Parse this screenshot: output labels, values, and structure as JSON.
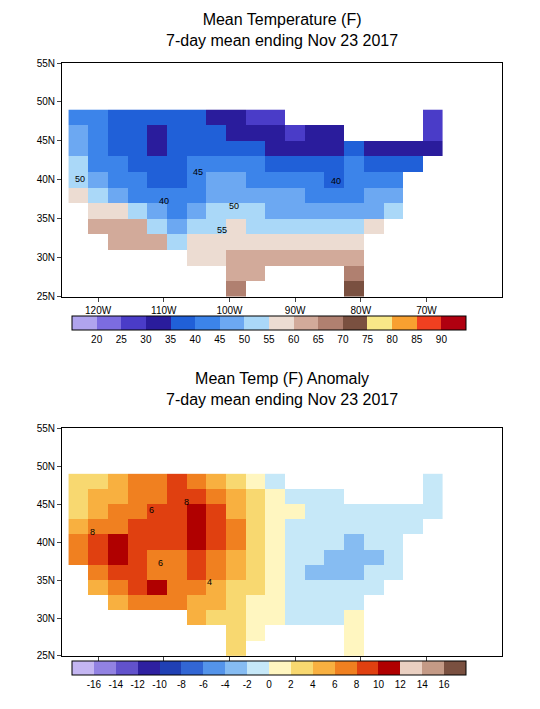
{
  "chart_data": [
    {
      "type": "heatmap",
      "title": "Mean Temperature (F)",
      "subtitle": "7-day mean ending Nov 23 2017",
      "grid": false,
      "xlim": [
        -125.5,
        -58.5
      ],
      "ylim": [
        25,
        55
      ],
      "xticks": [
        {
          "value": -120,
          "label": "120W"
        },
        {
          "value": -110,
          "label": "110W"
        },
        {
          "value": -100,
          "label": "100W"
        },
        {
          "value": -90,
          "label": "90W"
        },
        {
          "value": -80,
          "label": "80W"
        },
        {
          "value": -70,
          "label": "70W"
        }
      ],
      "yticks": [
        {
          "value": 25,
          "label": "25N"
        },
        {
          "value": 30,
          "label": "30N"
        },
        {
          "value": 35,
          "label": "35N"
        },
        {
          "value": 40,
          "label": "40N"
        },
        {
          "value": 45,
          "label": "45N"
        },
        {
          "value": 50,
          "label": "50N"
        },
        {
          "value": 55,
          "label": "55N"
        }
      ],
      "x": [
        -123,
        -120,
        -117,
        -114,
        -111,
        -108,
        -105,
        -102,
        -99,
        -96,
        -93,
        -90,
        -87,
        -84,
        -81,
        -78,
        -75,
        -72,
        -69
      ],
      "y": [
        26,
        28,
        30,
        32,
        34,
        36,
        38,
        40,
        42,
        44,
        46,
        48
      ],
      "z": [
        [
          null,
          null,
          null,
          null,
          null,
          null,
          null,
          null,
          66,
          null,
          null,
          null,
          null,
          null,
          72,
          null,
          null,
          null,
          null
        ],
        [
          null,
          null,
          null,
          null,
          null,
          null,
          null,
          null,
          63,
          64,
          null,
          null,
          null,
          null,
          68,
          null,
          null,
          null,
          null
        ],
        [
          null,
          null,
          null,
          null,
          null,
          null,
          57,
          58,
          61,
          62,
          62,
          61,
          61,
          61,
          62,
          null,
          null,
          null,
          null
        ],
        [
          null,
          null,
          62,
          64,
          61,
          52,
          56,
          57,
          58,
          58,
          57,
          56,
          56,
          56,
          58,
          null,
          null,
          null,
          null
        ],
        [
          null,
          62,
          62,
          61,
          52,
          47,
          51,
          54,
          56,
          54,
          53,
          52,
          52,
          52,
          54,
          56,
          null,
          null,
          null
        ],
        [
          null,
          56,
          57,
          52,
          46,
          43,
          46,
          51,
          52,
          51,
          49,
          48,
          47,
          46,
          47,
          49,
          52,
          null,
          null
        ],
        [
          56,
          52,
          48,
          44,
          42,
          41,
          42,
          47,
          49,
          48,
          46,
          46,
          44,
          43,
          44,
          46,
          48,
          null,
          null
        ],
        [
          52,
          47,
          42,
          41,
          38,
          38,
          41,
          46,
          47,
          44,
          42,
          41,
          41,
          39,
          41,
          42,
          44,
          null,
          null
        ],
        [
          51,
          43,
          41,
          38,
          37,
          39,
          42,
          43,
          42,
          41,
          38,
          37,
          37,
          38,
          41,
          38,
          37,
          38,
          null
        ],
        [
          48,
          42,
          38,
          36,
          31,
          37,
          38,
          39,
          37,
          36,
          33,
          33,
          33,
          34,
          36,
          34,
          32,
          31,
          33
        ],
        [
          46,
          41,
          38,
          36,
          34,
          37,
          37,
          36,
          33,
          32,
          31,
          29,
          31,
          32,
          null,
          null,
          null,
          null,
          29
        ],
        [
          44,
          41,
          38,
          37,
          38,
          37,
          36,
          33,
          31,
          29,
          28,
          null,
          null,
          null,
          null,
          null,
          null,
          null,
          28
        ]
      ],
      "colorbar": {
        "range": [
          15,
          95
        ],
        "ticks": [
          20,
          25,
          30,
          35,
          40,
          45,
          50,
          55,
          60,
          65,
          70,
          75,
          80,
          85,
          90
        ],
        "colors": [
          "#b0a4ee",
          "#7c6ce0",
          "#4a3cc8",
          "#2a1c9c",
          "#2060d8",
          "#3c84ea",
          "#6ca8f2",
          "#aad8f8",
          "#ecdcd2",
          "#d2aa9a",
          "#b08070",
          "#7a5040",
          "#f8e888",
          "#f8a030",
          "#f04020",
          "#b00010"
        ]
      },
      "annotations": [
        {
          "text": "50",
          "x": -122.7,
          "y": 40.1
        },
        {
          "text": "45",
          "x": -104.8,
          "y": 41.0
        },
        {
          "text": "40",
          "x": -110.0,
          "y": 37.3
        },
        {
          "text": "50",
          "x": -99.3,
          "y": 36.7
        },
        {
          "text": "55",
          "x": -101.1,
          "y": 33.6
        },
        {
          "text": "40",
          "x": -83.8,
          "y": 39.8
        }
      ]
    },
    {
      "type": "heatmap",
      "title": "Mean Temp (F) Anomaly",
      "subtitle": "7-day mean ending Nov 23 2017",
      "grid": false,
      "xlim": [
        -125.5,
        -58.5
      ],
      "ylim": [
        25,
        55
      ],
      "xticks": [
        {
          "value": -120,
          "label": "120W"
        },
        {
          "value": -110,
          "label": "110W"
        },
        {
          "value": -100,
          "label": "100W"
        },
        {
          "value": -90,
          "label": "90W"
        },
        {
          "value": -80,
          "label": "80W"
        },
        {
          "value": -70,
          "label": "70W"
        }
      ],
      "yticks": [
        {
          "value": 25,
          "label": "25N"
        },
        {
          "value": 30,
          "label": "30N"
        },
        {
          "value": 35,
          "label": "35N"
        },
        {
          "value": 40,
          "label": "40N"
        },
        {
          "value": 45,
          "label": "45N"
        },
        {
          "value": 50,
          "label": "50N"
        },
        {
          "value": 55,
          "label": "55N"
        }
      ],
      "x": [
        -123,
        -120,
        -117,
        -114,
        -111,
        -108,
        -105,
        -102,
        -99,
        -96,
        -93,
        -90,
        -87,
        -84,
        -81,
        -78,
        -75,
        -72,
        -69
      ],
      "y": [
        26,
        28,
        30,
        32,
        34,
        36,
        38,
        40,
        42,
        44,
        46,
        48
      ],
      "z": [
        [
          null,
          null,
          null,
          null,
          null,
          null,
          null,
          null,
          3,
          null,
          null,
          null,
          null,
          null,
          1,
          null,
          null,
          null,
          null
        ],
        [
          null,
          null,
          null,
          null,
          null,
          null,
          null,
          null,
          3,
          1,
          null,
          null,
          null,
          null,
          1,
          null,
          null,
          null,
          null
        ],
        [
          null,
          null,
          null,
          null,
          null,
          null,
          5,
          3,
          3,
          1,
          1,
          -1,
          -1,
          -1,
          1,
          null,
          null,
          null,
          null
        ],
        [
          null,
          null,
          5,
          7,
          7,
          7,
          5,
          5,
          3,
          1,
          1,
          -1,
          -1,
          -1,
          -1,
          null,
          null,
          null,
          null
        ],
        [
          null,
          5,
          7,
          9,
          11,
          7,
          7,
          5,
          3,
          3,
          1,
          -1,
          -1,
          -1,
          -1,
          -1,
          null,
          null,
          null
        ],
        [
          null,
          7,
          9,
          9,
          7,
          7,
          9,
          7,
          5,
          3,
          1,
          -1,
          -3,
          -3,
          -3,
          -1,
          -1,
          null,
          null
        ],
        [
          7,
          9,
          11,
          9,
          7,
          7,
          9,
          7,
          5,
          3,
          1,
          -1,
          -1,
          -3,
          -3,
          -3,
          -1,
          null,
          null
        ],
        [
          7,
          9,
          11,
          9,
          9,
          9,
          11,
          9,
          7,
          3,
          1,
          -1,
          -1,
          -1,
          -3,
          -1,
          -1,
          null,
          null
        ],
        [
          5,
          7,
          7,
          9,
          9,
          9,
          11,
          9,
          7,
          3,
          1,
          -1,
          -1,
          -1,
          -1,
          -1,
          -1,
          -1,
          null
        ],
        [
          3,
          5,
          7,
          7,
          9,
          9,
          11,
          9,
          5,
          3,
          1,
          1,
          -1,
          -1,
          -1,
          -1,
          -1,
          -1,
          -1
        ],
        [
          3,
          5,
          5,
          7,
          7,
          9,
          9,
          7,
          5,
          3,
          1,
          -1,
          -1,
          -1,
          null,
          null,
          null,
          null,
          -1
        ],
        [
          3,
          3,
          5,
          7,
          7,
          9,
          7,
          5,
          3,
          1,
          -1,
          null,
          null,
          null,
          null,
          null,
          null,
          null,
          -1
        ]
      ],
      "colorbar": {
        "range": [
          -18,
          18
        ],
        "ticks": [
          -16,
          -14,
          -12,
          -10,
          -8,
          -6,
          -4,
          -2,
          0,
          2,
          4,
          6,
          8,
          10,
          12,
          14,
          16
        ],
        "colors": [
          "#c4b6f2",
          "#9282e2",
          "#6252cc",
          "#2e20a0",
          "#2040b4",
          "#3266d4",
          "#5494ea",
          "#86bcf2",
          "#c6e8f8",
          "#fff6c0",
          "#f8d870",
          "#f8b040",
          "#f08020",
          "#e04010",
          "#b00000",
          "#ead0c2",
          "#c49a86",
          "#7a5040"
        ]
      },
      "annotations": [
        {
          "text": "8",
          "x": -120.8,
          "y": 41.3
        },
        {
          "text": "6",
          "x": -111.9,
          "y": 44.2
        },
        {
          "text": "8",
          "x": -106.6,
          "y": 45.3
        },
        {
          "text": "6",
          "x": -110.5,
          "y": 37.3
        },
        {
          "text": "4",
          "x": -103.0,
          "y": 34.8
        }
      ]
    }
  ]
}
